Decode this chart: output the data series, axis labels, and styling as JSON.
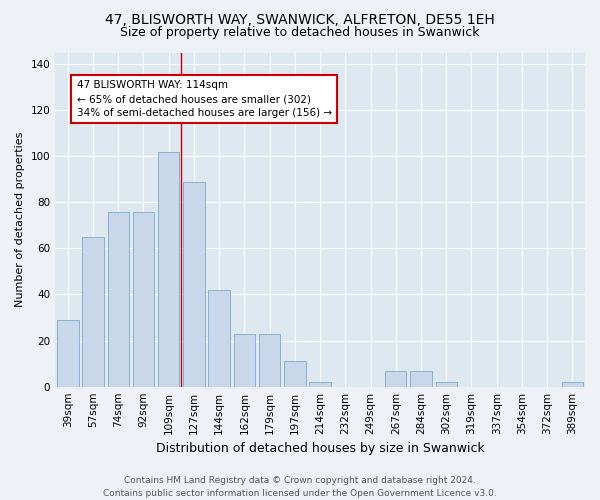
{
  "title": "47, BLISWORTH WAY, SWANWICK, ALFRETON, DE55 1EH",
  "subtitle": "Size of property relative to detached houses in Swanwick",
  "xlabel": "Distribution of detached houses by size in Swanwick",
  "ylabel": "Number of detached properties",
  "categories": [
    "39sqm",
    "57sqm",
    "74sqm",
    "92sqm",
    "109sqm",
    "127sqm",
    "144sqm",
    "162sqm",
    "179sqm",
    "197sqm",
    "214sqm",
    "232sqm",
    "249sqm",
    "267sqm",
    "284sqm",
    "302sqm",
    "319sqm",
    "337sqm",
    "354sqm",
    "372sqm",
    "389sqm"
  ],
  "values": [
    29,
    65,
    76,
    76,
    102,
    89,
    42,
    23,
    23,
    11,
    2,
    0,
    0,
    7,
    7,
    2,
    0,
    0,
    0,
    0,
    2
  ],
  "bar_color": "#c8d8ea",
  "bar_edge_color": "#7aaac8",
  "vline_x_index": 4.5,
  "annotation_text": "47 BLISWORTH WAY: 114sqm\n← 65% of detached houses are smaller (302)\n34% of semi-detached houses are larger (156) →",
  "annotation_box_facecolor": "#ffffff",
  "annotation_box_edgecolor": "#cc0000",
  "vline_color": "#cc0000",
  "ylim": [
    0,
    145
  ],
  "yticks": [
    0,
    20,
    40,
    60,
    80,
    100,
    120,
    140
  ],
  "plot_bg_color": "#dde8f0",
  "fig_bg_color": "#eef2f7",
  "footer_text": "Contains HM Land Registry data © Crown copyright and database right 2024.\nContains public sector information licensed under the Open Government Licence v3.0.",
  "title_fontsize": 10,
  "subtitle_fontsize": 9,
  "xlabel_fontsize": 9,
  "ylabel_fontsize": 8,
  "tick_fontsize": 7.5,
  "annotation_fontsize": 7.5,
  "footer_fontsize": 6.5
}
